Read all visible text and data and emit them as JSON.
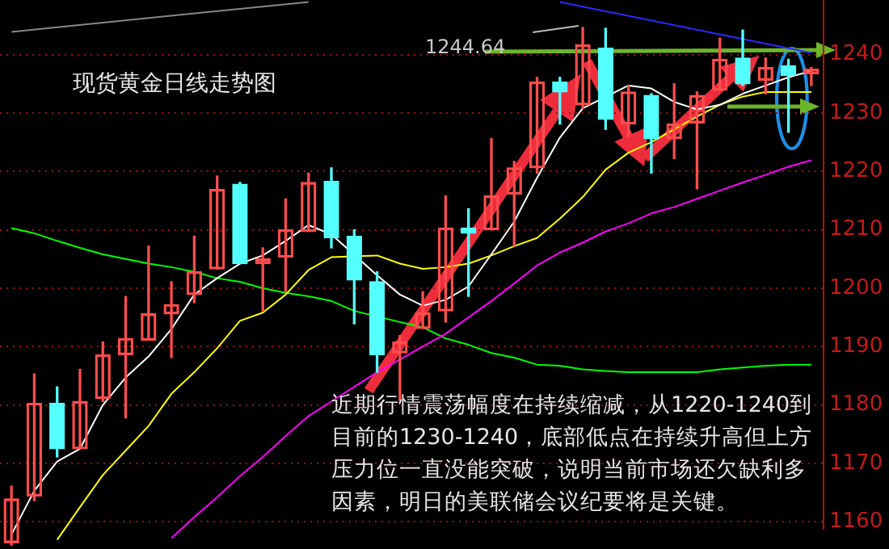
{
  "chart_data": {
    "type": "candlestick",
    "title": "现货黄金日线走势图",
    "categories": [
      null,
      null,
      null,
      null,
      null,
      null,
      null,
      null,
      null,
      null,
      null,
      null,
      null,
      null,
      null,
      null,
      null,
      null,
      null,
      null,
      null,
      null,
      null,
      null,
      null,
      null,
      null,
      null,
      null,
      null,
      null,
      null,
      null,
      null,
      null,
      null
    ],
    "ohlc": [
      [
        1156.4,
        1166.1,
        1156,
        1163.9
      ],
      [
        1164.4,
        1185.3,
        1163.6,
        1180.3
      ],
      [
        1180.3,
        1183.1,
        1171.1,
        1172.5
      ],
      [
        1172.5,
        1186.1,
        1172.5,
        1180.6
      ],
      [
        1181.1,
        1190.8,
        1180.6,
        1188.6
      ],
      [
        1188.6,
        1198.6,
        1177.8,
        1191.4
      ],
      [
        1191.1,
        1207.2,
        1191.1,
        1195.6
      ],
      [
        1195.6,
        1201.1,
        1188.1,
        1197.2
      ],
      [
        1198.9,
        1208.9,
        1197.5,
        1202.8
      ],
      [
        1203.3,
        1219.2,
        1203.3,
        1216.9
      ],
      [
        1217.8,
        1218.1,
        1204.2,
        1204.2
      ],
      [
        1204.2,
        1206.9,
        1196.1,
        1205
      ],
      [
        1205.3,
        1215.3,
        1199.4,
        1210
      ],
      [
        1209.7,
        1219.7,
        1209.7,
        1218.1
      ],
      [
        1218.3,
        1220.6,
        1206.9,
        1208.6
      ],
      [
        1208.9,
        1210,
        1193.9,
        1201.4
      ],
      [
        1201.1,
        1202.8,
        1185.6,
        1188.6
      ],
      [
        1188.9,
        1191.9,
        1180.8,
        1190.8
      ],
      [
        1193.1,
        1199.4,
        1193.1,
        1195.8
      ],
      [
        1196.1,
        1215.8,
        1194.2,
        1210.3
      ],
      [
        1210.3,
        1213.6,
        1198.6,
        1209.4
      ],
      [
        1210,
        1225.6,
        1210,
        1215.8
      ],
      [
        1216.1,
        1221.7,
        1207.2,
        1220.6
      ],
      [
        1220.6,
        1236.1,
        1219.7,
        1235.3
      ],
      [
        1235.3,
        1236.1,
        1228.1,
        1233.6
      ],
      [
        1231.4,
        1244.64,
        1230.8,
        1241.7
      ],
      [
        1241.1,
        1244.5,
        1227.2,
        1228.9
      ],
      [
        1228.1,
        1234.7,
        1226,
        1233.6
      ],
      [
        1233,
        1233.3,
        1219.7,
        1225.6
      ],
      [
        1225.6,
        1235,
        1222.2,
        1228.1
      ],
      [
        1228.3,
        1233.6,
        1217,
        1233
      ],
      [
        1233.9,
        1242.8,
        1233.9,
        1239.2
      ],
      [
        1239.4,
        1244.2,
        1234.7,
        1235
      ],
      [
        1235.6,
        1239.4,
        1233.3,
        1237.8
      ],
      [
        1238.1,
        1239.2,
        1226.7,
        1236.4
      ],
      [
        1236.7,
        1237.8,
        1234.7,
        1237.5
      ]
    ],
    "colors": [
      "#ff4d4d",
      "#ff4d4d",
      "#54ffff",
      "#ff4d4d",
      "#ff4d4d",
      "#ff4d4d",
      "#ff4d4d",
      "#ff4d4d",
      "#ff4d4d",
      "#ff4d4d",
      "#54ffff",
      "#ff4d4d",
      "#ff4d4d",
      "#ff4d4d",
      "#54ffff",
      "#54ffff",
      "#54ffff",
      "#ff4d4d",
      "#ff4d4d",
      "#ff4d4d",
      "#54ffff",
      "#ff4d4d",
      "#ff4d4d",
      "#ff4d4d",
      "#54ffff",
      "#ff4d4d",
      "#54ffff",
      "#ff4d4d",
      "#54ffff",
      "#ff4d4d",
      "#ff4d4d",
      "#ff4d4d",
      "#54ffff",
      "#ff4d4d",
      "#54ffff",
      "#ff4d4d"
    ],
    "series": [
      {
        "type": "line",
        "color": "#ffffff",
        "values": [
          1157.8,
          1165.3,
          1170.3,
          1172.5,
          1180,
          1184.7,
          1188.3,
          1193,
          1198.9,
          1201.7,
          1204.2,
          1205.6,
          1208.1,
          1210.8,
          1209.2,
          null,
          1202.2,
          1198.9,
          1197,
          1198,
          1200.3,
          1205.8,
          1211.4,
          1218.9,
          1225.8,
          1230.8,
          null,
          1234.7,
          1234.2,
          1231.9,
          1230.6,
          1231.4,
          1233.3,
          1234.7,
          1236.1,
          1237.2
        ]
      },
      {
        "type": "line",
        "color": "#ffff00",
        "values": [
          null,
          null,
          1156.9,
          1162.5,
          1168,
          1172.2,
          1176.4,
          1181.9,
          1185.6,
          1189.7,
          1194.4,
          1195.8,
          1198.9,
          1203.1,
          1205.3,
          null,
          1205.6,
          1204.2,
          1203.3,
          1203.6,
          1204.2,
          1205.6,
          1207.2,
          1208.6,
          1211.9,
          1215.6,
          1220.3,
          1223.2,
          1225,
          1227.2,
          1229.4,
          1231.4,
          1232.8,
          1233.6,
          1233.6,
          1233.6
        ]
      },
      {
        "type": "line",
        "color": "#ff00ff",
        "values": [
          null,
          null,
          null,
          null,
          null,
          null,
          null,
          1157.2,
          1160.8,
          1164.2,
          1167.8,
          1171.1,
          1174.7,
          1178.1,
          1180.6,
          1183.1,
          1185.6,
          1187.8,
          1190,
          1192.2,
          1195,
          1197.8,
          1200.8,
          1203.9,
          1206.1,
          1207.8,
          1209.7,
          1211.1,
          1212.8,
          1213.9,
          1215.3,
          1216.7,
          1218.1,
          1219.4,
          1220.8,
          1221.9
        ]
      },
      {
        "type": "line",
        "color": "#00ff00",
        "values": [
          1210.3,
          1209.4,
          1208.1,
          1206.9,
          1205.8,
          1205,
          1204.2,
          1203.6,
          1202.8,
          1201.7,
          1201.1,
          1200,
          1199.2,
          1198.6,
          1197.8,
          1196.1,
          null,
          1194.2,
          1193.3,
          1191.4,
          1190.3,
          1188.9,
          1188.1,
          1186.9,
          1186.7,
          1186.1,
          1185.8,
          1185.6,
          1185.6,
          1185.6,
          1185.6,
          1186.1,
          1186.4,
          1186.7,
          1186.9,
          1186.9
        ]
      },
      {
        "type": "line",
        "color": "#888888",
        "values": [
          1243.9,
          null,
          null,
          null,
          null,
          null,
          null,
          null,
          null,
          null,
          null,
          null,
          null,
          1249,
          null,
          null,
          null,
          null,
          null,
          null,
          null,
          null,
          null,
          null,
          null,
          null,
          null,
          null,
          null,
          null,
          null,
          null,
          null,
          null,
          null,
          null
        ]
      },
      {
        "type": "line",
        "color": "#2a2aff",
        "values": [
          null,
          null,
          null,
          null,
          null,
          null,
          null,
          null,
          null,
          null,
          null,
          null,
          null,
          null,
          null,
          null,
          null,
          null,
          null,
          null,
          null,
          null,
          null,
          null,
          1249,
          null,
          null,
          null,
          null,
          null,
          null,
          null,
          null,
          null,
          null,
          1240.3
        ]
      }
    ],
    "ylim": [
      1155,
      1249.4
    ],
    "yticks": [
      1160,
      1170,
      1180,
      1190,
      1200,
      1210,
      1220,
      1230,
      1240
    ],
    "grid": "y",
    "tick_labels": "y",
    "legend": false,
    "marker": "none",
    "annotations": [
      "近期行情震荡幅度在持续缩减，从1220-1240到目前的1230-1240，底部低点在持续升高但上方压力位一直没能突破，说明当前市场还欠缺利多因素，明日的美联储会议纪要将是关键。",
      "1244.64"
    ]
  }
}
